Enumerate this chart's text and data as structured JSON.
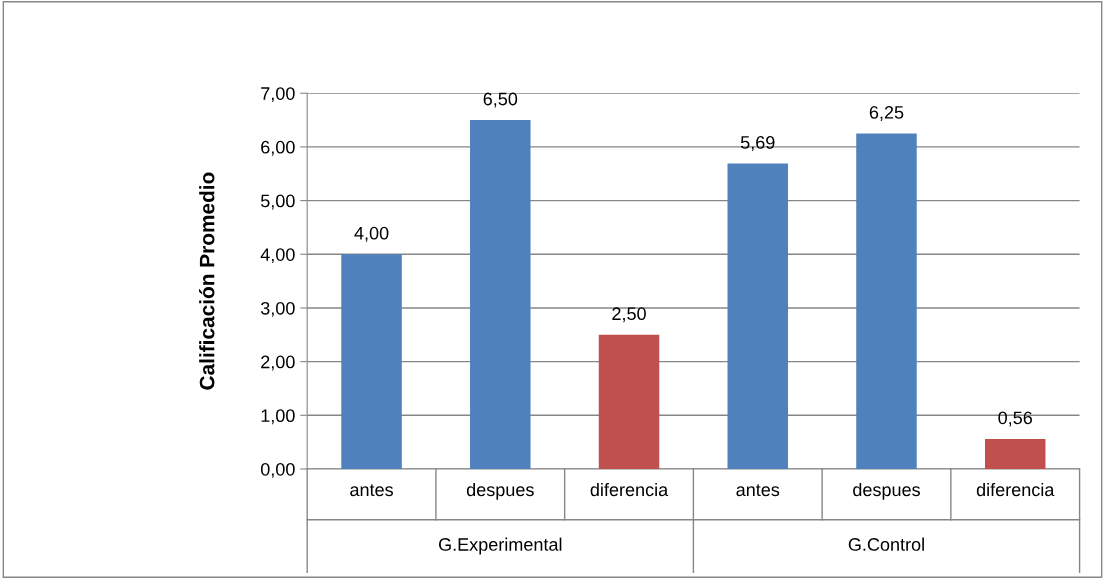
{
  "chart_data": {
    "type": "bar",
    "ylabel": "Calificación Promedio",
    "categories": [
      "antes",
      "despues",
      "diferencia",
      "antes",
      "despues",
      "diferencia"
    ],
    "values": [
      4.0,
      6.5,
      2.5,
      5.69,
      6.25,
      0.56
    ],
    "colors": [
      "#4f81bd",
      "#4f81bd",
      "#c0504d",
      "#4f81bd",
      "#4f81bd",
      "#c0504d"
    ],
    "value_labels": [
      "4,00",
      "6,50",
      "2,50",
      "5,69",
      "6,25",
      "0,56"
    ],
    "annotations": [
      "G.Experimental",
      "G.Control"
    ],
    "ylim": [
      0,
      7
    ],
    "yticks": [
      {
        "value": 0,
        "label": "0,00"
      },
      {
        "value": 1,
        "label": "1,00"
      },
      {
        "value": 2,
        "label": "2,00"
      },
      {
        "value": 3,
        "label": "3,00"
      },
      {
        "value": 4,
        "label": "4,00"
      },
      {
        "value": 5,
        "label": "5,00"
      },
      {
        "value": 6,
        "label": "6,00"
      },
      {
        "value": 7,
        "label": "7,00"
      }
    ],
    "grid": "y",
    "legend": false
  }
}
